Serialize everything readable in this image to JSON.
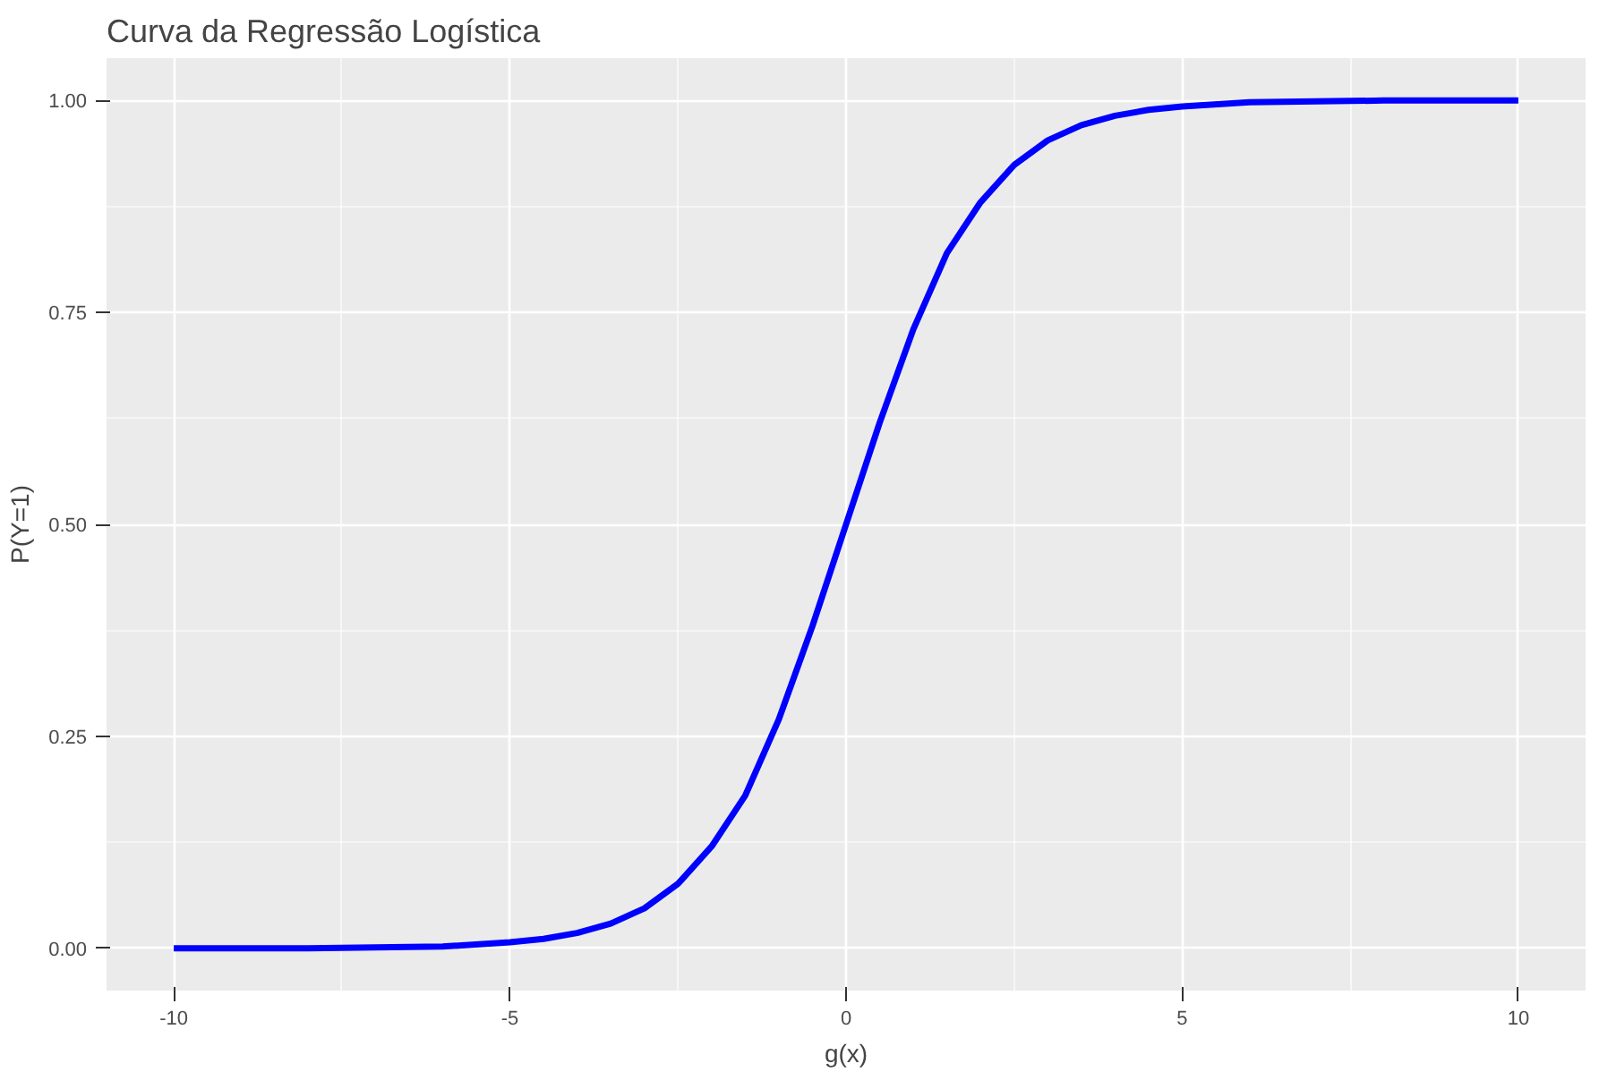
{
  "chart_data": {
    "type": "line",
    "title": "Curva da Regressão Logística",
    "xlabel": "g(x)",
    "ylabel": "P(Y=1)",
    "x": [
      -10,
      -9,
      -8,
      -7,
      -6,
      -5,
      -4.5,
      -4,
      -3.5,
      -3,
      -2.5,
      -2,
      -1.5,
      -1,
      -0.5,
      0,
      0.5,
      1,
      1.5,
      2,
      2.5,
      3,
      3.5,
      4,
      4.5,
      5,
      6,
      7,
      8,
      9,
      10
    ],
    "series": [
      {
        "color": "#0000ff",
        "values": [
          0,
          0,
          0,
          0.001,
          0.002,
          0.007,
          0.011,
          0.018,
          0.029,
          0.047,
          0.076,
          0.12,
          0.18,
          0.27,
          0.38,
          0.5,
          0.62,
          0.73,
          0.82,
          0.88,
          0.924,
          0.953,
          0.971,
          0.982,
          0.989,
          0.993,
          0.998,
          0.999,
          1,
          1,
          1
        ]
      }
    ],
    "xlim": [
      -11,
      11
    ],
    "ylim": [
      -0.05,
      1.05
    ],
    "xticks": [
      {
        "value": -10,
        "label": "-10"
      },
      {
        "value": -5,
        "label": "-5"
      },
      {
        "value": 0,
        "label": "0"
      },
      {
        "value": 5,
        "label": "5"
      },
      {
        "value": 10,
        "label": "10"
      }
    ],
    "yticks": [
      {
        "value": 0,
        "label": "0.00"
      },
      {
        "value": 0.25,
        "label": "0.25"
      },
      {
        "value": 0.5,
        "label": "0.50"
      },
      {
        "value": 0.75,
        "label": "0.75"
      },
      {
        "value": 1,
        "label": "1.00"
      }
    ],
    "grid": true,
    "line_style": "solid",
    "marker": "none"
  }
}
